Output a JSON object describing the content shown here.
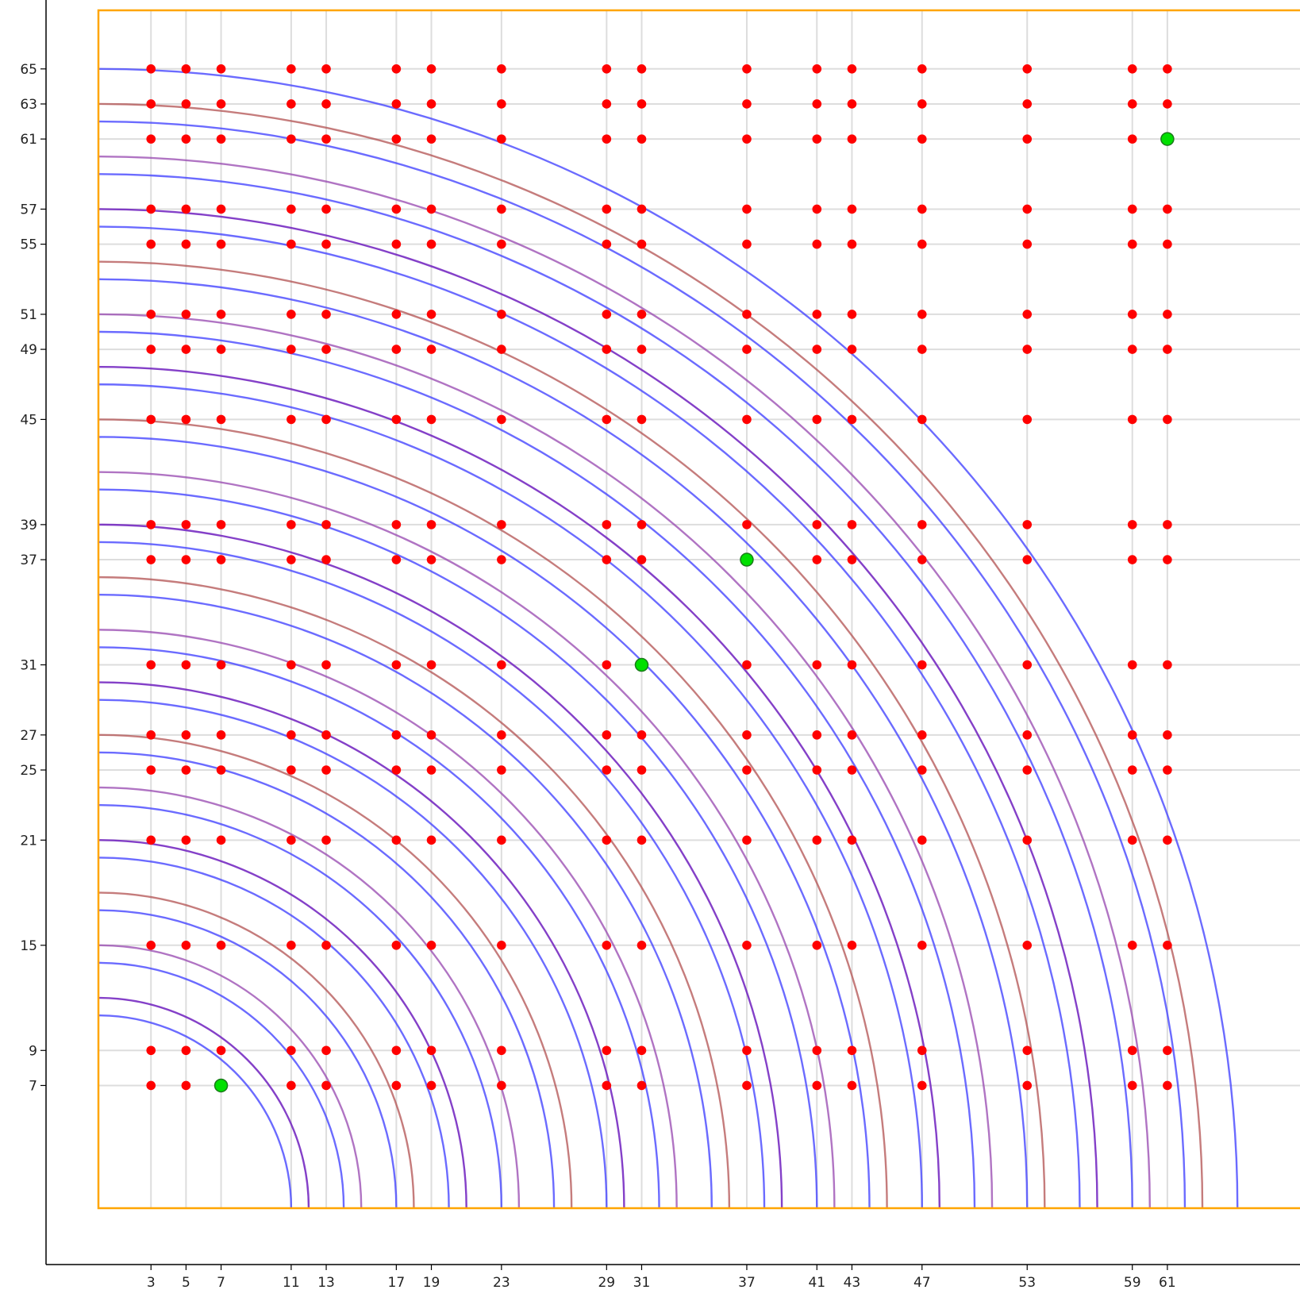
{
  "chart_data": {
    "type": "scatter",
    "title": "",
    "xlabel": "",
    "ylabel": "",
    "x_ticks": [
      3,
      5,
      7,
      11,
      13,
      17,
      19,
      23,
      29,
      31,
      37,
      41,
      43,
      47,
      53,
      59,
      61
    ],
    "y_ticks": [
      7,
      9,
      15,
      21,
      25,
      27,
      31,
      37,
      39,
      45,
      49,
      51,
      55,
      57,
      61,
      63,
      65
    ],
    "xlim": [
      0,
      68
    ],
    "ylim": [
      0,
      68
    ],
    "grid": true,
    "frame_color": "#ffa500",
    "point_color": "#ff0000",
    "highlight_color": "#00e000",
    "grid_points": {
      "x": [
        3,
        5,
        7,
        11,
        13,
        17,
        19,
        23,
        29,
        31,
        37,
        41,
        43,
        47,
        53,
        59,
        61
      ],
      "y": [
        7,
        9,
        15,
        21,
        25,
        27,
        31,
        37,
        39,
        45,
        49,
        51,
        55,
        57,
        61,
        63,
        65
      ]
    },
    "highlighted_points": [
      {
        "x": 7,
        "y": 7
      },
      {
        "x": 31,
        "y": 31
      },
      {
        "x": 37,
        "y": 37
      },
      {
        "x": 61,
        "y": 61
      }
    ],
    "arcs": {
      "center": [
        0,
        0
      ],
      "blue_radii": [
        65,
        62,
        59,
        56,
        53,
        50,
        47,
        44,
        41,
        38,
        35,
        32,
        29,
        26,
        23,
        20,
        17,
        14,
        11
      ],
      "brown_radii": [
        63,
        54,
        45,
        36,
        27,
        18
      ],
      "purple_radii": [
        60,
        51,
        42,
        33,
        24,
        15
      ],
      "violet_radii": [
        57,
        48,
        39,
        30,
        21,
        12
      ]
    }
  }
}
